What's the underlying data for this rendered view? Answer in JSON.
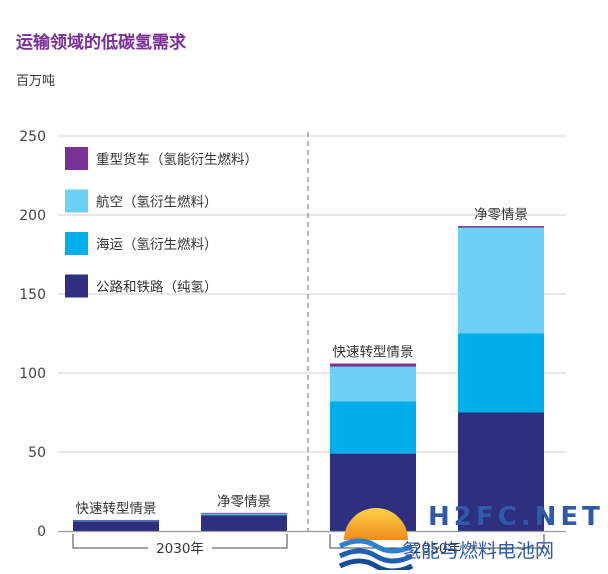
{
  "title": "运输领域的低碳氢需求",
  "unit_label": "百万吨",
  "colors": {
    "title": "#7a2f98",
    "heavy_truck": "#7b3296",
    "aviation": "#6dd0f5",
    "shipping": "#00aeec",
    "road_rail": "#2e2f7e"
  },
  "chart_data": {
    "type": "bar",
    "stacked": true,
    "ylim": [
      0,
      250
    ],
    "yticks": [
      0,
      50,
      100,
      150,
      200,
      250
    ],
    "grid": true,
    "legend_position": "top-left",
    "categories": [
      "快速转型情景",
      "净零情景",
      "快速转型情景",
      "净零情景"
    ],
    "groups": [
      {
        "label": "2030年",
        "category_indices": [
          0,
          1
        ]
      },
      {
        "label": "2050年",
        "category_indices": [
          2,
          3
        ]
      }
    ],
    "series": [
      {
        "name": "公路和铁路（纯氢）",
        "color_key": "road_rail",
        "values": [
          6,
          10,
          49,
          75
        ]
      },
      {
        "name": "海运（氢衍生燃料）",
        "color_key": "shipping",
        "values": [
          0.5,
          0.6,
          33,
          50
        ]
      },
      {
        "name": "航空（氢衍生燃料）",
        "color_key": "aviation",
        "values": [
          0.3,
          0.5,
          22,
          67
        ]
      },
      {
        "name": "重型货车（氢能衍生燃料）",
        "color_key": "heavy_truck",
        "values": [
          0.2,
          0.4,
          2,
          1
        ]
      }
    ],
    "legend_order": [
      3,
      2,
      1,
      0
    ]
  },
  "watermark": {
    "top": "H2FC.NET",
    "bottom": "氢能与燃料电池网"
  }
}
